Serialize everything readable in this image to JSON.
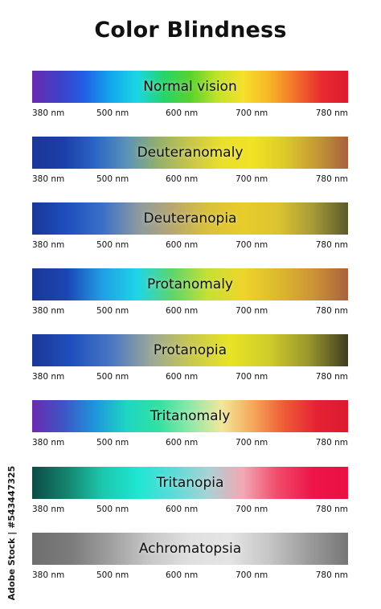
{
  "title": "Color Blindness",
  "tick_labels": [
    "380 nm",
    "500 nm",
    "600 nm",
    "700 nm",
    "780 nm"
  ],
  "credit": "Adobe Stock | #543447325",
  "spectra": [
    {
      "label": "Normal vision",
      "colors": [
        "#6a2bb0",
        "#3f3fc6",
        "#2060e6",
        "#12a8ee",
        "#1bd6e2",
        "#25d46a",
        "#58d22d",
        "#bfe12a",
        "#f5e12a",
        "#f7b628",
        "#f2712b",
        "#e82b30",
        "#dc1a2e"
      ]
    },
    {
      "label": "Deuteranomaly",
      "colors": [
        "#1a3797",
        "#1b3ea8",
        "#2a66c4",
        "#5a93b8",
        "#94b06a",
        "#c8c64a",
        "#eadf2b",
        "#f2e224",
        "#ddc92a",
        "#c59936",
        "#a7613d"
      ]
    },
    {
      "label": "Deuteranopia",
      "colors": [
        "#1a3797",
        "#1e4fbe",
        "#3b70c8",
        "#8a99a2",
        "#b8a870",
        "#d9c13b",
        "#e7cc2b",
        "#dcc430",
        "#a79a39",
        "#5a5a2a"
      ]
    },
    {
      "label": "Protanomaly",
      "colors": [
        "#1a3797",
        "#1c46b4",
        "#209fe6",
        "#1fd5e8",
        "#5ed56a",
        "#c6e034",
        "#eed52c",
        "#ddb92e",
        "#cc9436",
        "#a9623c"
      ]
    },
    {
      "label": "Protanopia",
      "colors": [
        "#1a3797",
        "#1f50be",
        "#4977c4",
        "#9aa79a",
        "#c8c750",
        "#e7e424",
        "#cfcc2b",
        "#9a972c",
        "#3e3d20"
      ]
    },
    {
      "label": "Tritanomaly",
      "colors": [
        "#6a2bb0",
        "#3d55c6",
        "#1e96dc",
        "#1ed6c2",
        "#32e0a0",
        "#8fe8a8",
        "#f2e79b",
        "#f5a75a",
        "#ee5a36",
        "#e52234",
        "#dc1a2e"
      ]
    },
    {
      "label": "Tritanopia",
      "colors": [
        "#0c4c46",
        "#14846e",
        "#1cc7ad",
        "#1ee6d2",
        "#5adbd8",
        "#a8d2d6",
        "#f2a8b4",
        "#f04a6a",
        "#ee1448",
        "#ea1042"
      ]
    },
    {
      "label": "Achromatopsia",
      "colors": [
        "#6e6e6e",
        "#7c7c7c",
        "#a0a0a0",
        "#c8c8c8",
        "#e0e0e0",
        "#e4e4e4",
        "#c6c6c6",
        "#9c9c9c",
        "#767676"
      ]
    }
  ]
}
